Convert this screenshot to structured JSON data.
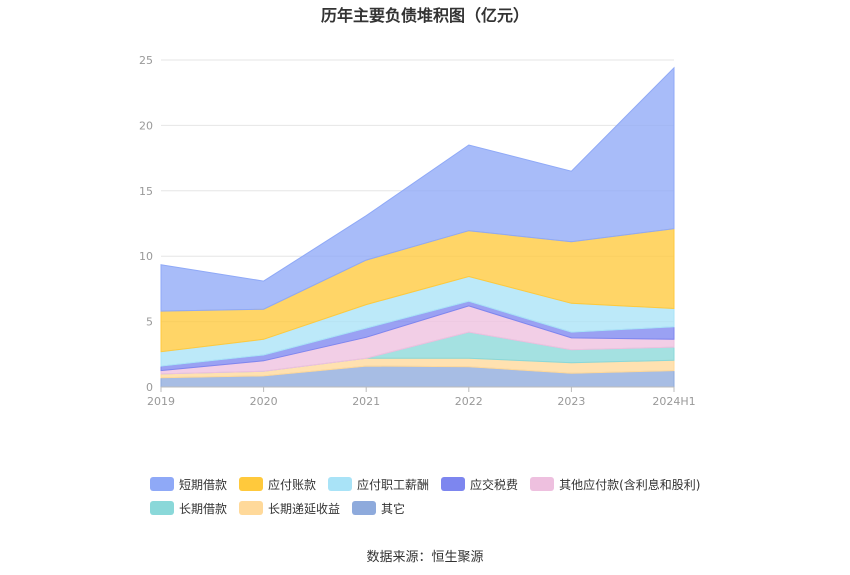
{
  "chart_data": {
    "type": "area",
    "stacked": true,
    "title": "历年主要负债堆积图（亿元）",
    "categories": [
      "2019",
      "2020",
      "2021",
      "2022",
      "2023",
      "2024H1"
    ],
    "ylim": [
      0,
      25
    ],
    "yticks": [
      0,
      5,
      10,
      15,
      20,
      25
    ],
    "grid": true,
    "legend_position": "bottom",
    "series": [
      {
        "name": "其它",
        "color": "#8eaadc",
        "values": [
          0.7,
          0.85,
          1.6,
          1.55,
          1.05,
          1.25
        ]
      },
      {
        "name": "长期递延收益",
        "color": "#ffd99a",
        "values": [
          0.3,
          0.35,
          0.6,
          0.65,
          0.8,
          0.8
        ]
      },
      {
        "name": "长期借款",
        "color": "#8ad8d9",
        "values": [
          0.0,
          0.0,
          0.0,
          2.0,
          1.0,
          1.0
        ]
      },
      {
        "name": "其他应付款(含利息和股利)",
        "color": "#eec0df",
        "values": [
          0.25,
          0.8,
          1.6,
          2.0,
          0.9,
          0.6
        ]
      },
      {
        "name": "应交税费",
        "color": "#7d86ef",
        "values": [
          0.35,
          0.45,
          0.7,
          0.35,
          0.45,
          0.95
        ]
      },
      {
        "name": "应付职工薪酬",
        "color": "#a9e3f7",
        "values": [
          1.1,
          1.2,
          1.8,
          1.9,
          2.2,
          1.4
        ]
      },
      {
        "name": "应付账款",
        "color": "#ffc93c",
        "values": [
          3.1,
          2.3,
          3.4,
          3.5,
          4.7,
          6.1
        ]
      },
      {
        "name": "短期借款",
        "color": "#8fa9f7",
        "values": [
          3.55,
          2.15,
          3.4,
          6.55,
          5.4,
          12.3
        ]
      }
    ]
  },
  "legend_rows": [
    [
      "短期借款",
      "应付账款",
      "应付职工薪酬",
      "应交税费",
      "其他应付款(含利息和股利)"
    ],
    [
      "长期借款",
      "长期递延收益",
      "其它"
    ]
  ],
  "source": "数据来源：恒生聚源"
}
